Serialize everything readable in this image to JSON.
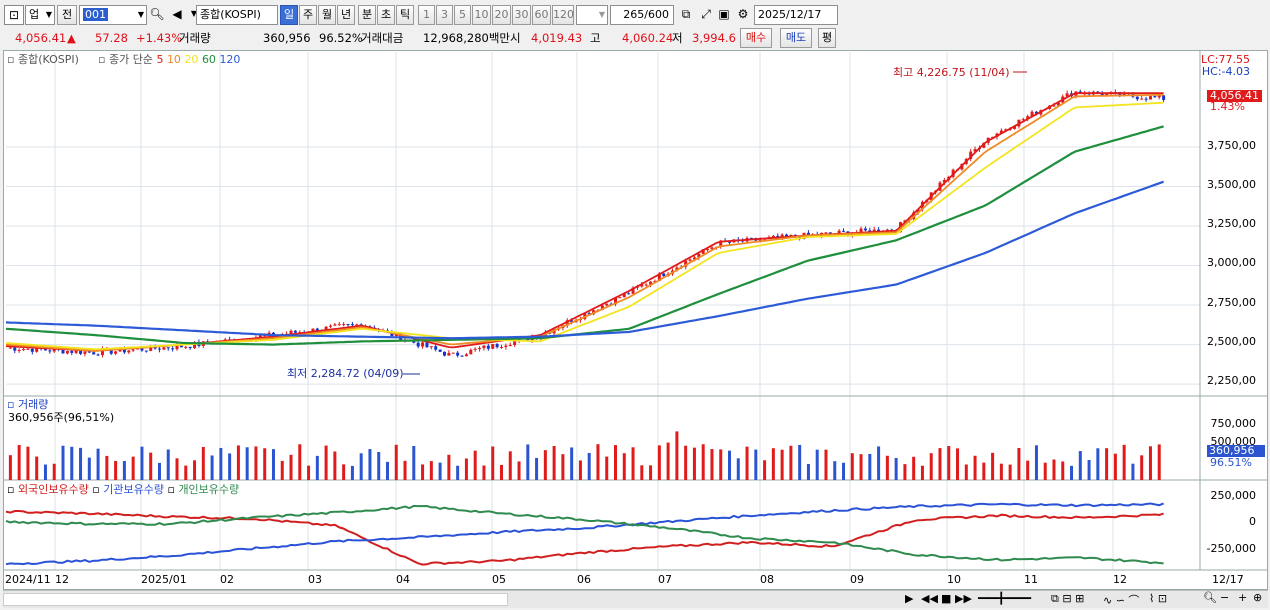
{
  "toolbar": {
    "market": "업",
    "prefix": "전",
    "code": "001",
    "name": "종합(KOSPI)",
    "periods": [
      "일",
      "주",
      "월",
      "년",
      "분",
      "초",
      "틱"
    ],
    "active_period": "일",
    "intervals": [
      "1",
      "3",
      "5",
      "10",
      "20",
      "30",
      "60",
      "120"
    ],
    "count": "265",
    "count_total": "/600",
    "date": "2025/12/17"
  },
  "quote": {
    "price": "4,056.41",
    "arrow": "▲",
    "change": "57.28",
    "change_pct": "+1.43%",
    "volume_label": "거래량",
    "volume": "360,956",
    "volume_ratio": "96.52%",
    "amount_label": "거래대금",
    "amount": "12,968,280백만",
    "open_label": "시",
    "open": "4,019.43",
    "high_label": "고",
    "high": "4,060.24",
    "low_label": "저",
    "low": "3,994.6",
    "buy": "매수",
    "sell": "매도",
    "eval": "평"
  },
  "price_panel": {
    "title": "종합(KOSPI)",
    "ma_label": "종가 단순",
    "ma_periods": [
      "5",
      "10",
      "20",
      "60",
      "120"
    ],
    "ma_colors": [
      "#e01b1b",
      "#f08a24",
      "#f2e51e",
      "#1e8f3c",
      "#2d5bd8"
    ],
    "lc": "LC:77.55",
    "hc": "HC:-4.03",
    "current_price": "4,056.41",
    "current_pct": "1.43%",
    "high_note": "최고 4,226.75 (11/04)",
    "low_note": "최저 2,284.72 (04/09)",
    "y_ticks": [
      "3,750,00",
      "3,500,00",
      "3,250,00",
      "3,000,00",
      "2,750,00",
      "2,500,00",
      "2,250,00"
    ]
  },
  "volume_panel": {
    "title": "거래량",
    "value_note": "360,956주(96,51%)",
    "y_ticks": [
      "750,000",
      "500,000"
    ],
    "current": "360,956",
    "current_pct": "96.51%"
  },
  "holding_panel": {
    "legend": [
      "외국인보유수량",
      "기관보유수량",
      "개인보유수량"
    ],
    "colors": [
      "#d11f1f",
      "#2a52d6",
      "#2f8a4e"
    ],
    "y_ticks": [
      "250,000",
      "0",
      "-250,000"
    ]
  },
  "x_axis": {
    "labels": [
      "2024/11",
      "12",
      "2025/01",
      "02",
      "03",
      "04",
      "05",
      "06",
      "07",
      "08",
      "09",
      "10",
      "11",
      "12",
      "12/17"
    ]
  },
  "chart_data": {
    "type": "line",
    "series": [
      {
        "name": "종합(KOSPI)",
        "x": [
          "2024/11",
          "2024/12",
          "2025/01",
          "2025/02",
          "2025/03",
          "2025/04",
          "2025/05",
          "2025/06",
          "2025/07",
          "2025/08",
          "2025/09",
          "2025/10",
          "2025/11",
          "2025/12"
        ],
        "values": [
          2480,
          2450,
          2490,
          2560,
          2630,
          2430,
          2560,
          2830,
          3140,
          3190,
          3230,
          3800,
          4100,
          4056
        ]
      },
      {
        "name": "5",
        "values": [
          2490,
          2460,
          2500,
          2550,
          2620,
          2480,
          2560,
          2840,
          3150,
          3190,
          3220,
          3780,
          4090,
          4090
        ]
      },
      {
        "name": "10",
        "values": [
          2500,
          2460,
          2500,
          2540,
          2610,
          2500,
          2550,
          2800,
          3120,
          3190,
          3210,
          3720,
          4070,
          4080
        ]
      },
      {
        "name": "20",
        "values": [
          2510,
          2470,
          2500,
          2530,
          2600,
          2540,
          2520,
          2740,
          3080,
          3180,
          3200,
          3620,
          4000,
          4030
        ]
      },
      {
        "name": "60",
        "values": [
          2600,
          2560,
          2510,
          2500,
          2520,
          2530,
          2540,
          2600,
          2820,
          3030,
          3160,
          3380,
          3720,
          3880
        ]
      },
      {
        "name": "120",
        "values": [
          2640,
          2620,
          2590,
          2560,
          2550,
          2540,
          2550,
          2580,
          2680,
          2790,
          2880,
          3080,
          3330,
          3530
        ]
      }
    ],
    "ylim": [
      2200,
      4300
    ]
  }
}
